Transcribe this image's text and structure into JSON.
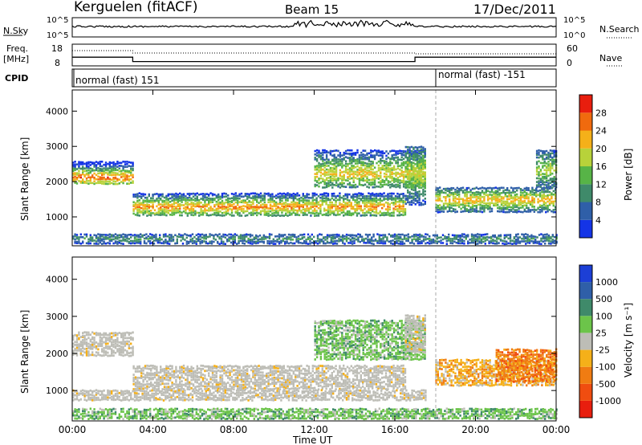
{
  "header": {
    "radar": "Kerguelen (fitACF)",
    "beam": "Beam 15",
    "date": "17/Dec/2011"
  },
  "nsky_panel": {
    "left_label": "N.Sky",
    "right_label": "N.Search",
    "tick_top": "10^5",
    "tick_bottom": "10^0"
  },
  "freq_panel": {
    "left_label_1": "Freq.",
    "left_label_2": "[MHz]",
    "right_label": "Nave",
    "left_ticks": [
      "18",
      "8"
    ],
    "right_ticks": [
      "60",
      "0"
    ],
    "freq_steps_mhz": [
      [
        0,
        3,
        12.0
      ],
      [
        3,
        17,
        10.0
      ],
      [
        17,
        24,
        12.0
      ]
    ]
  },
  "cpid_panel": {
    "label": "CPID",
    "modes": [
      {
        "text": "normal (fast) 151",
        "start_h": 0
      },
      {
        "text": "normal (fast) -151",
        "start_h": 18
      }
    ]
  },
  "time_axis": {
    "ticks": [
      "00:00",
      "04:00",
      "08:00",
      "12:00",
      "16:00",
      "20:00",
      "00:00"
    ],
    "tick_hours": [
      0,
      4,
      8,
      12,
      16,
      20,
      24
    ],
    "title": "Time UT"
  },
  "chart_data": [
    {
      "type": "heatmap",
      "title": "Power",
      "xlabel": "Time UT",
      "ylabel": "Slant Range [km]",
      "xlim": [
        0,
        24
      ],
      "ylim": [
        180,
        4600
      ],
      "yticks": [
        1000,
        2000,
        3000,
        4000
      ],
      "colorbar": {
        "label": "Power [dB]",
        "ticks": [
          "4",
          "8",
          "12",
          "16",
          "20",
          "24",
          "28"
        ],
        "colors": [
          "#1434e6",
          "#2f5fa8",
          "#3f8a6a",
          "#57b447",
          "#b8d23a",
          "#f5b019",
          "#f06a0e",
          "#e81e0e"
        ]
      },
      "bands": [
        {
          "t0": 0.0,
          "t1": 3.0,
          "r0": 1900,
          "r1": 2550,
          "mid": 2080,
          "peak": 28
        },
        {
          "t0": 3.0,
          "t1": 16.5,
          "r0": 1000,
          "r1": 1650,
          "mid": 1250,
          "peak": 26
        },
        {
          "t0": 12.0,
          "t1": 17.5,
          "r0": 1800,
          "r1": 2900,
          "mid": 2200,
          "peak": 22
        },
        {
          "t0": 16.5,
          "t1": 17.5,
          "r0": 1300,
          "r1": 3000,
          "mid": 2200,
          "peak": 20
        },
        {
          "t0": 18.0,
          "t1": 24.0,
          "r0": 1100,
          "r1": 1800,
          "mid": 1450,
          "peak": 24
        },
        {
          "t0": 23.0,
          "t1": 24.0,
          "r0": 1800,
          "r1": 2900,
          "mid": 2300,
          "peak": 18
        },
        {
          "t0": 0.0,
          "t1": 24.0,
          "r0": 200,
          "r1": 500,
          "mid": 350,
          "peak": 10
        }
      ]
    },
    {
      "type": "heatmap",
      "title": "Velocity",
      "xlabel": "Time UT",
      "ylabel": "Slant Range [km]",
      "xlim": [
        0,
        24
      ],
      "ylim": [
        180,
        4600
      ],
      "yticks": [
        1000,
        2000,
        3000,
        4000
      ],
      "colorbar": {
        "label": "Velocity [m s⁻¹]",
        "ticks": [
          "1000",
          "500",
          "100",
          "25",
          "-25",
          "-100",
          "-500",
          "-1000"
        ],
        "colors": [
          "#1c3fd6",
          "#2f5fa8",
          "#3f8a6a",
          "#6cc44a",
          "#bdbdb6",
          "#f5b019",
          "#f07c12",
          "#f04d10",
          "#e81e0e"
        ]
      },
      "bands": [
        {
          "t0": 0.0,
          "t1": 3.0,
          "r0": 1900,
          "r1": 2550,
          "class": "ground"
        },
        {
          "t0": 3.0,
          "t1": 16.5,
          "r0": 1000,
          "r1": 1650,
          "class": "ground"
        },
        {
          "t0": 0.0,
          "t1": 17.5,
          "r0": 700,
          "r1": 1000,
          "class": "ground"
        },
        {
          "t0": 12.0,
          "t1": 17.5,
          "r0": 1800,
          "r1": 2900,
          "class": "slow-positive"
        },
        {
          "t0": 16.5,
          "t1": 17.5,
          "r0": 2000,
          "r1": 3000,
          "class": "ground"
        },
        {
          "t0": 18.0,
          "t1": 24.0,
          "r0": 1100,
          "r1": 1800,
          "class": "negative"
        },
        {
          "t0": 21.0,
          "t1": 24.0,
          "r0": 1200,
          "r1": 2100,
          "class": "strong-negative"
        },
        {
          "t0": 0.0,
          "t1": 24.0,
          "r0": 200,
          "r1": 500,
          "class": "slow-positive"
        }
      ]
    }
  ]
}
